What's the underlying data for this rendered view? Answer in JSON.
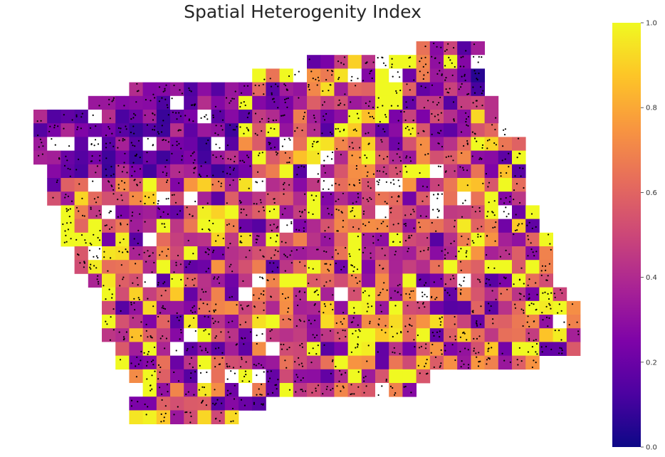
{
  "title": "Spatial Heterogenity Index",
  "chart_data": {
    "type": "heatmap",
    "title": "Spatial Heterogenity Index",
    "colormap": "plasma",
    "value_range": [
      0.0,
      1.0
    ],
    "grid": false,
    "axes_visible": false,
    "colorbar": {
      "position": "right",
      "ticks": [
        0.0,
        0.2,
        0.4,
        0.6,
        0.8,
        1.0
      ],
      "tick_labels": [
        "0.0",
        "0.2",
        "0.4",
        "0.6",
        "0.8",
        "1.0"
      ]
    },
    "point_overlay": {
      "color": "#000000"
    },
    "missing_cells_color": "#ffffff",
    "random_seed": 17
  }
}
